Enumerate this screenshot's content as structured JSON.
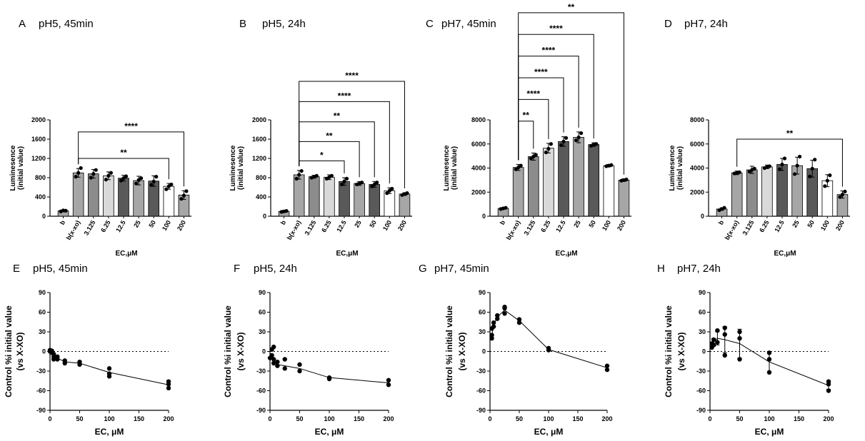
{
  "chart_data": [
    {
      "letter": "A",
      "title": "pH5, 45min",
      "type": "bar",
      "ylabel_line1": "Luminesence",
      "ylabel_line2": "(initial value)",
      "xlabel": "EC,μM",
      "ylim": [
        0,
        2000
      ],
      "yticks": [
        "0",
        "400",
        "800",
        "1200",
        "1600",
        "2000"
      ],
      "ytick_values": [
        0,
        400,
        800,
        1200,
        1600,
        2000
      ],
      "categories": [
        "b",
        "b(x-xo)",
        "3.125",
        "6.25",
        "12.5",
        "25",
        "50",
        "100",
        "200"
      ],
      "values": [
        110,
        900,
        880,
        840,
        790,
        740,
        730,
        620,
        440
      ],
      "errors": [
        20,
        90,
        90,
        80,
        60,
        90,
        110,
        60,
        90
      ],
      "colors": [
        "#a6a6a6",
        "#a6a6a6",
        "#8c8c8c",
        "#d9d9d9",
        "#595959",
        "#a6a6a6",
        "#595959",
        "#ffffff",
        "#a6a6a6"
      ],
      "points": [
        [
          100,
          120,
          115
        ],
        [
          820,
          900,
          1000
        ],
        [
          800,
          880,
          960
        ],
        [
          760,
          840,
          900
        ],
        [
          740,
          790,
          830
        ],
        [
          680,
          750,
          790
        ],
        [
          650,
          720,
          820
        ],
        [
          560,
          620,
          660
        ],
        [
          360,
          430,
          520
        ]
      ],
      "significance": [
        {
          "from": 1,
          "to": 7,
          "label": "**",
          "level": 1200
        },
        {
          "from": 1,
          "to": 8,
          "label": "****",
          "level": 1750
        }
      ]
    },
    {
      "letter": "B",
      "title": "pH5, 24h",
      "type": "bar",
      "ylabel_line1": "Luminesence",
      "ylabel_line2": "(initial value)",
      "xlabel": "EC,μM",
      "ylim": [
        0,
        2000
      ],
      "yticks": [
        "0",
        "400",
        "800",
        "1200",
        "1600",
        "2000"
      ],
      "ytick_values": [
        0,
        400,
        800,
        1200,
        1600,
        2000
      ],
      "categories": [
        "b",
        "b(x-xo)",
        "3.125",
        "6.25",
        "12.5",
        "25",
        "50",
        "100",
        "200"
      ],
      "values": [
        100,
        860,
        820,
        810,
        720,
        680,
        660,
        530,
        460
      ],
      "errors": [
        20,
        90,
        30,
        50,
        80,
        40,
        60,
        60,
        30
      ],
      "colors": [
        "#a6a6a6",
        "#a6a6a6",
        "#8c8c8c",
        "#d9d9d9",
        "#595959",
        "#a6a6a6",
        "#595959",
        "#ffffff",
        "#a6a6a6"
      ],
      "points": [
        [
          90,
          100,
          110
        ],
        [
          780,
          860,
          940
        ],
        [
          800,
          820,
          840
        ],
        [
          780,
          810,
          840
        ],
        [
          660,
          720,
          780
        ],
        [
          660,
          680,
          700
        ],
        [
          620,
          660,
          700
        ],
        [
          480,
          530,
          570
        ],
        [
          440,
          460,
          480
        ]
      ],
      "significance": [
        {
          "from": 1,
          "to": 4,
          "label": "*",
          "level": 1150
        },
        {
          "from": 1,
          "to": 5,
          "label": "**",
          "level": 1550
        },
        {
          "from": 1,
          "to": 6,
          "label": "**",
          "level": 1960
        },
        {
          "from": 1,
          "to": 7,
          "label": "****",
          "level": 2380
        },
        {
          "from": 1,
          "to": 8,
          "label": "****",
          "level": 2800
        }
      ]
    },
    {
      "letter": "C",
      "title": "pH7, 45min",
      "type": "bar",
      "ylabel_line1": "Luminesence",
      "ylabel_line2": "(initial value)",
      "xlabel": "EC,μM",
      "ylim": [
        0,
        8000
      ],
      "yticks": [
        "0",
        "2000",
        "4000",
        "6000",
        "8000"
      ],
      "ytick_values": [
        0,
        2000,
        4000,
        6000,
        8000
      ],
      "categories": [
        "b",
        "b(x-xo)",
        "3.125",
        "6.25",
        "12.5",
        "25",
        "50",
        "100",
        "200"
      ],
      "values": [
        650,
        4050,
        4950,
        5650,
        6200,
        6550,
        5950,
        4200,
        3000
      ],
      "errors": [
        60,
        250,
        300,
        400,
        400,
        450,
        150,
        100,
        100
      ],
      "colors": [
        "#a6a6a6",
        "#a6a6a6",
        "#8c8c8c",
        "#d9d9d9",
        "#595959",
        "#a6a6a6",
        "#595959",
        "#ffffff",
        "#a6a6a6"
      ],
      "points": [
        [
          600,
          650,
          700
        ],
        [
          3900,
          4050,
          4200
        ],
        [
          4800,
          4950,
          5100
        ],
        [
          5300,
          5600,
          6000
        ],
        [
          5900,
          6200,
          6500
        ],
        [
          6300,
          6550,
          6900
        ],
        [
          5850,
          5950,
          6000
        ],
        [
          4150,
          4200,
          4250
        ],
        [
          2950,
          3000,
          3050
        ]
      ],
      "significance": [
        {
          "from": 1,
          "to": 2,
          "label": "**",
          "level": 7900
        },
        {
          "from": 1,
          "to": 3,
          "label": "****",
          "level": 9700
        },
        {
          "from": 1,
          "to": 4,
          "label": "****",
          "level": 11500
        },
        {
          "from": 1,
          "to": 5,
          "label": "****",
          "level": 13300
        },
        {
          "from": 1,
          "to": 6,
          "label": "****",
          "level": 15100
        },
        {
          "from": 1,
          "to": 8,
          "label": "**",
          "level": 16900
        }
      ]
    },
    {
      "letter": "D",
      "title": "pH7, 24h",
      "type": "bar",
      "ylabel_line1": "Luminesence",
      "ylabel_line2": "(initial value)",
      "xlabel": "EC,μM",
      "ylim": [
        0,
        8000
      ],
      "yticks": [
        "0",
        "2000",
        "4000",
        "6000",
        "8000"
      ],
      "ytick_values": [
        0,
        2000,
        4000,
        6000,
        8000
      ],
      "categories": [
        "b",
        "b(x-xo)",
        "3.125",
        "6.25",
        "12.5",
        "25",
        "50",
        "100",
        "200"
      ],
      "values": [
        600,
        3600,
        3850,
        4100,
        4300,
        4200,
        3950,
        2950,
        1800
      ],
      "errors": [
        100,
        150,
        300,
        150,
        500,
        700,
        700,
        500,
        300
      ],
      "colors": [
        "#a6a6a6",
        "#a6a6a6",
        "#8c8c8c",
        "#d9d9d9",
        "#595959",
        "#a6a6a6",
        "#595959",
        "#ffffff",
        "#a6a6a6"
      ],
      "points": [
        [
          500,
          600,
          700
        ],
        [
          3550,
          3600,
          3650
        ],
        [
          3700,
          3850,
          3950
        ],
        [
          4000,
          4100,
          4150
        ],
        [
          3900,
          4300,
          4800
        ],
        [
          3500,
          4200,
          4950
        ],
        [
          3300,
          3950,
          4700
        ],
        [
          2500,
          2950,
          3400
        ],
        [
          1600,
          1800,
          2050
        ]
      ],
      "significance": [
        {
          "from": 1,
          "to": 8,
          "label": "**",
          "level": 6400
        }
      ]
    },
    {
      "letter": "E",
      "title": "pH5, 45min",
      "type": "line",
      "ylabel_line1": "Control %i initial value",
      "ylabel_line2": "(vs X-XO)",
      "xlabel": "EC, μM",
      "xlim": [
        0,
        200
      ],
      "xticks": [
        "0",
        "50",
        "100",
        "150",
        "200"
      ],
      "xtick_values": [
        0,
        50,
        100,
        150,
        200
      ],
      "ylim": [
        -90,
        90
      ],
      "yticks": [
        "-90",
        "-60",
        "-30",
        "0",
        "30",
        "60",
        "90"
      ],
      "ytick_values": [
        -90,
        -60,
        -30,
        0,
        30,
        60,
        90
      ],
      "x": [
        0,
        3.125,
        6.25,
        12.5,
        25,
        50,
        100,
        200
      ],
      "means": [
        0,
        -2,
        -6,
        -10,
        -16,
        -18,
        -32,
        -51
      ],
      "scatter": [
        [
          0,
          0
        ],
        [
          0,
          2
        ],
        [
          3.125,
          -2
        ],
        [
          3.125,
          1
        ],
        [
          6.25,
          -4
        ],
        [
          6.25,
          -12
        ],
        [
          6.25,
          -8
        ],
        [
          12.5,
          -12
        ],
        [
          12.5,
          -8
        ],
        [
          25,
          -14
        ],
        [
          25,
          -18
        ],
        [
          50,
          -16
        ],
        [
          50,
          -20
        ],
        [
          100,
          -26
        ],
        [
          100,
          -34
        ],
        [
          100,
          -38
        ],
        [
          200,
          -46
        ],
        [
          200,
          -50
        ],
        [
          200,
          -56
        ]
      ],
      "zero_line": true
    },
    {
      "letter": "F",
      "title": "pH5, 24h",
      "type": "line",
      "ylabel_line1": "Control %i initial value",
      "ylabel_line2": "(vs X-XO)",
      "xlabel": "EC, μM",
      "xlim": [
        0,
        200
      ],
      "xticks": [
        "0",
        "50",
        "100",
        "150",
        "200"
      ],
      "xtick_values": [
        0,
        50,
        100,
        150,
        200
      ],
      "ylim": [
        -90,
        90
      ],
      "yticks": [
        "-90",
        "-60",
        "-30",
        "0",
        "30",
        "60",
        "90"
      ],
      "ytick_values": [
        -90,
        -60,
        -30,
        0,
        30,
        60,
        90
      ],
      "x": [
        0,
        3.125,
        6.25,
        12.5,
        25,
        50,
        100,
        200
      ],
      "means": [
        -10,
        -5,
        -15,
        -20,
        -22,
        -26,
        -40,
        -48
      ],
      "scatter": [
        [
          0,
          -10
        ],
        [
          3.125,
          3
        ],
        [
          3.125,
          -6
        ],
        [
          6.25,
          7
        ],
        [
          6.25,
          -12
        ],
        [
          6.25,
          -18
        ],
        [
          12.5,
          -22
        ],
        [
          12.5,
          -16
        ],
        [
          25,
          -12
        ],
        [
          25,
          -26
        ],
        [
          50,
          -20
        ],
        [
          50,
          -30
        ],
        [
          100,
          -40
        ],
        [
          100,
          -42
        ],
        [
          200,
          -44
        ],
        [
          200,
          -51
        ]
      ],
      "zero_line": true
    },
    {
      "letter": "G",
      "title": "pH7, 45min",
      "type": "line",
      "ylabel_line1": "Control %i initial value",
      "ylabel_line2": "(vs X-XO)",
      "xlabel": "EC, μM",
      "xlim": [
        0,
        200
      ],
      "xticks": [
        "0",
        "50",
        "100",
        "150",
        "200"
      ],
      "xtick_values": [
        0,
        50,
        100,
        150,
        200
      ],
      "ylim": [
        -90,
        90
      ],
      "yticks": [
        "-90",
        "-60",
        "-30",
        "0",
        "30",
        "60",
        "90"
      ],
      "ytick_values": [
        -90,
        -60,
        -30,
        0,
        30,
        60,
        90
      ],
      "x": [
        3.125,
        6.25,
        12.5,
        25,
        50,
        100,
        200
      ],
      "means": [
        25,
        40,
        53,
        63,
        47,
        3,
        -25
      ],
      "scatter": [
        [
          3.125,
          20
        ],
        [
          3.125,
          25
        ],
        [
          3.125,
          35
        ],
        [
          6.25,
          38
        ],
        [
          6.25,
          44
        ],
        [
          12.5,
          50
        ],
        [
          12.5,
          55
        ],
        [
          25,
          58
        ],
        [
          25,
          66
        ],
        [
          25,
          68
        ],
        [
          50,
          44
        ],
        [
          50,
          49
        ],
        [
          100,
          2
        ],
        [
          100,
          5
        ],
        [
          200,
          -22
        ],
        [
          200,
          -28
        ]
      ],
      "zero_line": true
    },
    {
      "letter": "H",
      "title": "pH7, 24h",
      "type": "line",
      "ylabel_line1": "Control %i initial value",
      "ylabel_line2": "(vs X-XO)",
      "xlabel": "EC, μM",
      "xlim": [
        0,
        200
      ],
      "xticks": [
        "0",
        "50",
        "100",
        "150",
        "200"
      ],
      "xtick_values": [
        0,
        50,
        100,
        150,
        200
      ],
      "ylim": [
        -90,
        90
      ],
      "yticks": [
        "-90",
        "-60",
        "-30",
        "0",
        "30",
        "60",
        "90"
      ],
      "ytick_values": [
        -90,
        -60,
        -30,
        0,
        30,
        60,
        90
      ],
      "x": [
        3.125,
        6.25,
        12.5,
        25,
        50,
        100,
        200
      ],
      "means": [
        10,
        14,
        20,
        18,
        12,
        -16,
        -52
      ],
      "err_hi": [
        4,
        6,
        10,
        20,
        22,
        15,
        6
      ],
      "err_lo": [
        4,
        6,
        10,
        20,
        22,
        15,
        6
      ],
      "scatter": [
        [
          3.125,
          6
        ],
        [
          3.125,
          12
        ],
        [
          6.25,
          10
        ],
        [
          6.25,
          18
        ],
        [
          12.5,
          14
        ],
        [
          12.5,
          32
        ],
        [
          25,
          36
        ],
        [
          25,
          26
        ],
        [
          25,
          -6
        ],
        [
          50,
          30
        ],
        [
          50,
          20
        ],
        [
          50,
          -12
        ],
        [
          100,
          -2
        ],
        [
          100,
          -12
        ],
        [
          100,
          -32
        ],
        [
          200,
          -46
        ],
        [
          200,
          -50
        ],
        [
          200,
          -60
        ]
      ],
      "zero_line": true
    }
  ]
}
